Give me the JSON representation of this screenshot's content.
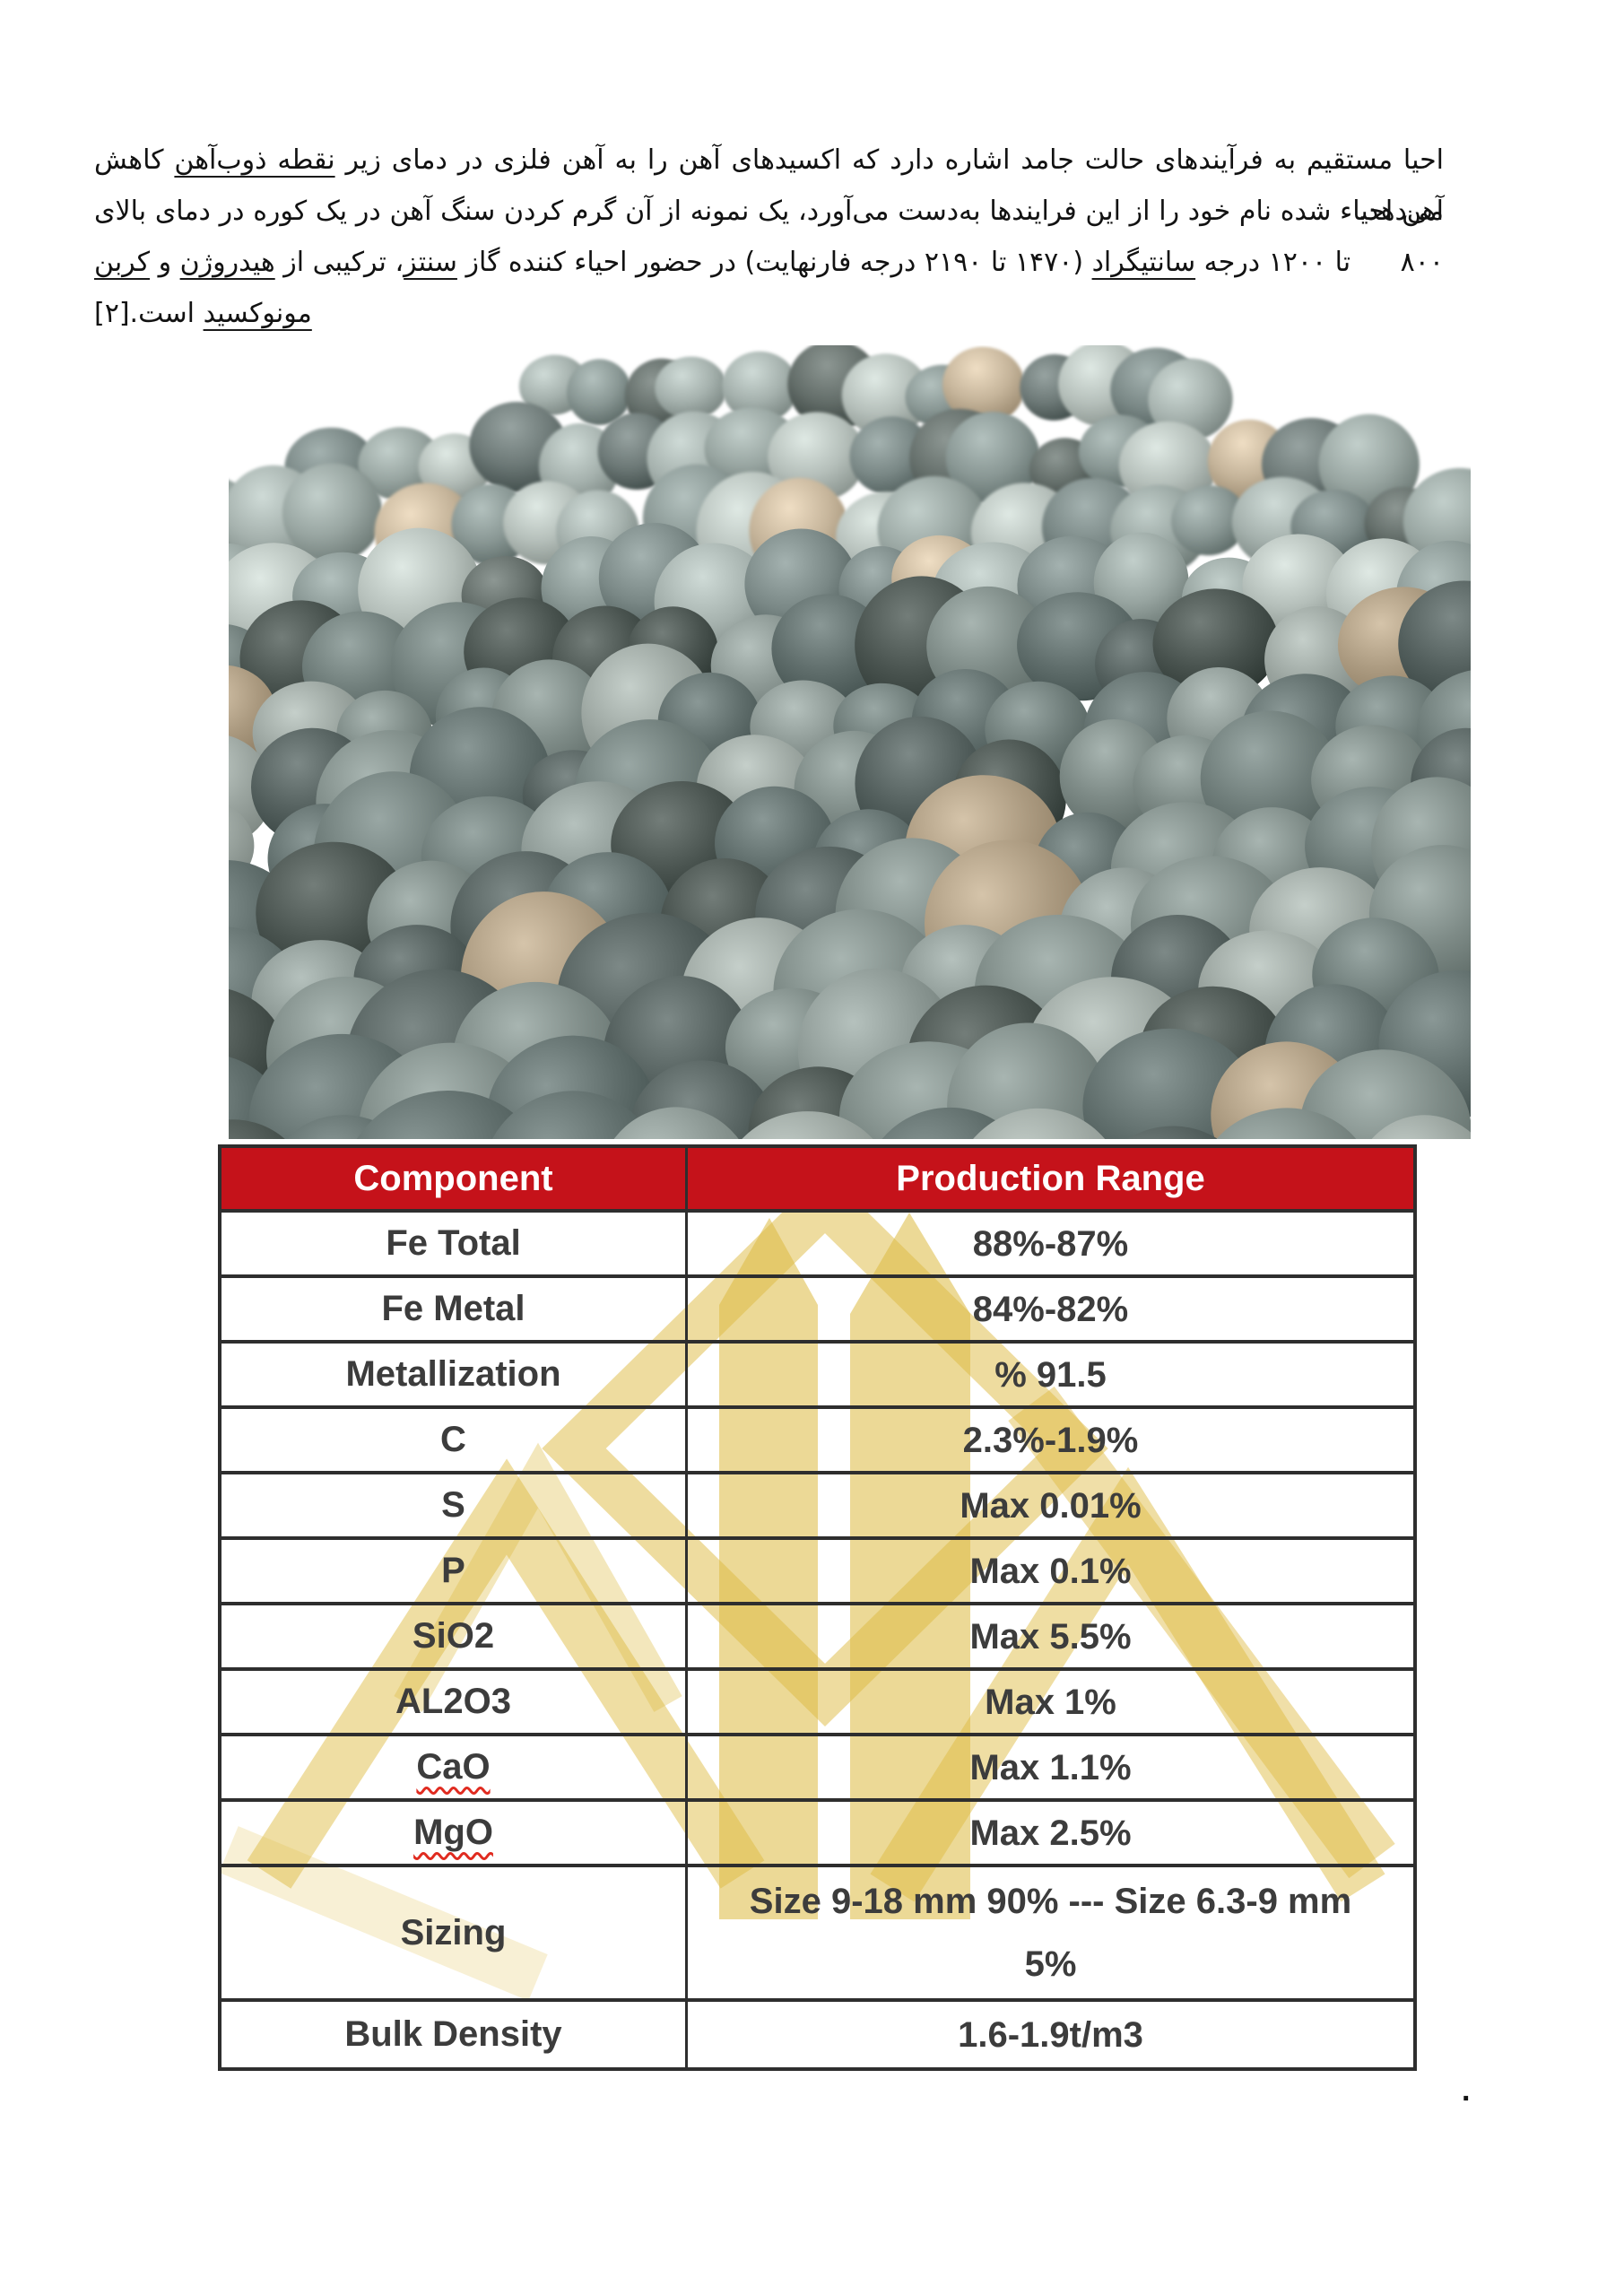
{
  "document": {
    "language": "fa",
    "paragraph_lines": [
      {
        "align": "justify",
        "segments": [
          {
            "text": "احیا مستقیم به فرآیندهای حالت جامد اشاره دارد که اکسیدهای آهن را به آهن فلزی در دمای زیر ",
            "underline": false
          },
          {
            "text": "نقطه ذوب‌آهن",
            "underline": true
          },
          {
            "text": " کاهش می‌دهد.",
            "underline": false
          }
        ]
      },
      {
        "align": "justify",
        "segments": [
          {
            "text": "آهن احیاء شده نام خود را از این فرایندها به‌دست می‌آورد، یک نمونه از آن گرم کردن سنگ آهن در یک کوره در دمای بالای ۸۰۰",
            "underline": false
          }
        ]
      },
      {
        "align": "left",
        "segments": [
          {
            "text": "تا ۱۲۰۰ درجه ",
            "underline": false
          },
          {
            "text": "سانتیگراد",
            "underline": true
          },
          {
            "text": " (۱۴۷۰ تا ۲۱۹۰ درجه فارنهایت) در حضور احیاء کننده گاز ",
            "underline": false
          },
          {
            "text": "سنتز",
            "underline": true
          },
          {
            "text": "، ترکیبی از ",
            "underline": false
          },
          {
            "text": "هیدروژن",
            "underline": true
          },
          {
            "text": " و ",
            "underline": false
          },
          {
            "text": "کربن",
            "underline": true
          }
        ]
      },
      {
        "align": "left",
        "segments": [
          {
            "text": "مونوکسید",
            "underline": true
          },
          {
            "text": " است.[۲]",
            "underline": false
          }
        ]
      }
    ]
  },
  "photo": {
    "description": "Pile of grey direct-reduced iron (sponge iron) pellets on a white background",
    "background": "#ffffff",
    "pellet_palette": [
      "#5f6d6a",
      "#505e5c",
      "#6e7b77",
      "#434f4d",
      "#7b8783",
      "#39433f",
      "#8b9590"
    ],
    "tan_pellet_color": "#9b8a70"
  },
  "table": {
    "header": {
      "col1": "Component",
      "col2": "Production Range"
    },
    "header_bg": "#c5121a",
    "header_text_color": "#ffffff",
    "body_text_color": "#3c3c3c",
    "border_color": "#2e2e2e",
    "rows": [
      {
        "component": "Fe Total",
        "range": "88%-87%"
      },
      {
        "component": "Fe Metal",
        "range": "84%-82%"
      },
      {
        "component": "Metallization",
        "range": "% 91.5"
      },
      {
        "component": "C",
        "range": "2.3%-1.9%"
      },
      {
        "component": "S",
        "range": "Max 0.01%"
      },
      {
        "component": "P",
        "range": "Max 0.1%"
      },
      {
        "component": "SiO2",
        "range": "Max 5.5%"
      },
      {
        "component": "AL2O3",
        "range": "Max 1%"
      },
      {
        "component": "CaO",
        "range": "Max 1.1%",
        "spell_error": true
      },
      {
        "component": "MgO",
        "range": "Max 2.5%",
        "spell_error": true
      },
      {
        "component": "Sizing",
        "range": "Size 9-18 mm 90% --- Size 6.3-9 mm\n5%",
        "tall": true
      },
      {
        "component": "Bulk Density",
        "range": "1.6-1.9t/m3"
      }
    ]
  },
  "watermark": {
    "name": "company-logo-watermark",
    "color": "#ddb93f"
  },
  "footer": {
    "trailing_dot": "."
  }
}
